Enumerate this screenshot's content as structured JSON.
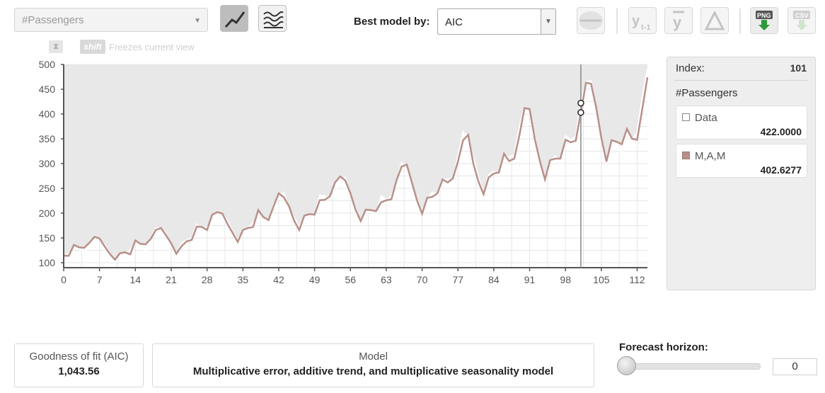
{
  "toolbar": {
    "series_select": "#Passengers",
    "best_model_label": "Best model by:",
    "best_model_value": "AIC",
    "icons": [
      "line-chart-icon",
      "multi-line-chart-icon",
      "smooth-icon",
      "lag-icon",
      "mean-icon",
      "difference-icon",
      "png-export-icon",
      "csv-export-icon"
    ]
  },
  "freeze_hint": {
    "key": "shift",
    "text": "Freezes current view"
  },
  "side_panel": {
    "index_label": "Index:",
    "index_value": "101",
    "series_title": "#Passengers",
    "entries": [
      {
        "name": "Data",
        "value": "422.0000",
        "color": "#ffffff"
      },
      {
        "name": "M,A,M",
        "value": "402.6277",
        "color": "#b89088"
      }
    ]
  },
  "footer": {
    "gof_label": "Goodness of fit (AIC)",
    "gof_value": "1,043.56",
    "model_label": "Model",
    "model_value": "Multiplicative error, additive trend, and multiplicative seasonality model",
    "forecast_label": "Forecast horizon:",
    "forecast_value": "0"
  },
  "chart_data": {
    "type": "line",
    "x_ticks": [
      0,
      7,
      14,
      21,
      28,
      35,
      42,
      49,
      56,
      63,
      70,
      77,
      84,
      91,
      98,
      105,
      112
    ],
    "y_ticks": [
      100,
      150,
      200,
      250,
      300,
      350,
      400,
      450,
      500
    ],
    "xlim": [
      0,
      114
    ],
    "ylim": [
      90,
      500
    ],
    "cursor_index": 101,
    "colors": {
      "data": "#ffffff",
      "model": "#b89088",
      "fill": "#e8e8e8"
    },
    "series": [
      {
        "name": "Data",
        "values": [
          112,
          118,
          132,
          129,
          121,
          135,
          148,
          148,
          136,
          119,
          104,
          118,
          115,
          126,
          141,
          135,
          125,
          149,
          170,
          170,
          158,
          133,
          114,
          140,
          145,
          150,
          178,
          163,
          172,
          178,
          199,
          199,
          184,
          162,
          146,
          166,
          171,
          180,
          193,
          181,
          183,
          218,
          230,
          242,
          209,
          191,
          172,
          194,
          196,
          196,
          236,
          235,
          229,
          243,
          264,
          272,
          237,
          211,
          180,
          201,
          204,
          188,
          235,
          227,
          234,
          264,
          302,
          293,
          259,
          229,
          203,
          229,
          242,
          233,
          267,
          269,
          270,
          315,
          364,
          347,
          312,
          274,
          237,
          278,
          284,
          277,
          317,
          313,
          318,
          374,
          413,
          405,
          355,
          306,
          271,
          306,
          315,
          301,
          356,
          348,
          355,
          422,
          465,
          467,
          404,
          347,
          305,
          336,
          340,
          318,
          362,
          348,
          363,
          435,
          491
        ]
      },
      {
        "name": "M,A,M",
        "values": [
          114,
          114,
          136,
          131,
          130,
          140,
          152,
          149,
          133,
          118,
          106,
          119,
          121,
          117,
          145,
          138,
          137,
          148,
          166,
          170,
          155,
          139,
          118,
          133,
          143,
          146,
          173,
          172,
          166,
          197,
          202,
          199,
          178,
          160,
          142,
          166,
          170,
          172,
          206,
          192,
          186,
          214,
          240,
          232,
          214,
          185,
          166,
          195,
          198,
          197,
          226,
          227,
          234,
          262,
          274,
          266,
          240,
          207,
          184,
          207,
          206,
          204,
          222,
          226,
          228,
          266,
          294,
          298,
          262,
          226,
          199,
          231,
          233,
          240,
          268,
          262,
          270,
          304,
          347,
          358,
          300,
          264,
          238,
          272,
          280,
          282,
          320,
          305,
          310,
          357,
          412,
          410,
          350,
          305,
          268,
          307,
          310,
          310,
          348,
          343,
          346,
          403,
          463,
          461,
          413,
          352,
          304,
          347,
          344,
          339,
          370,
          350,
          348,
          410,
          474
        ]
      }
    ]
  }
}
